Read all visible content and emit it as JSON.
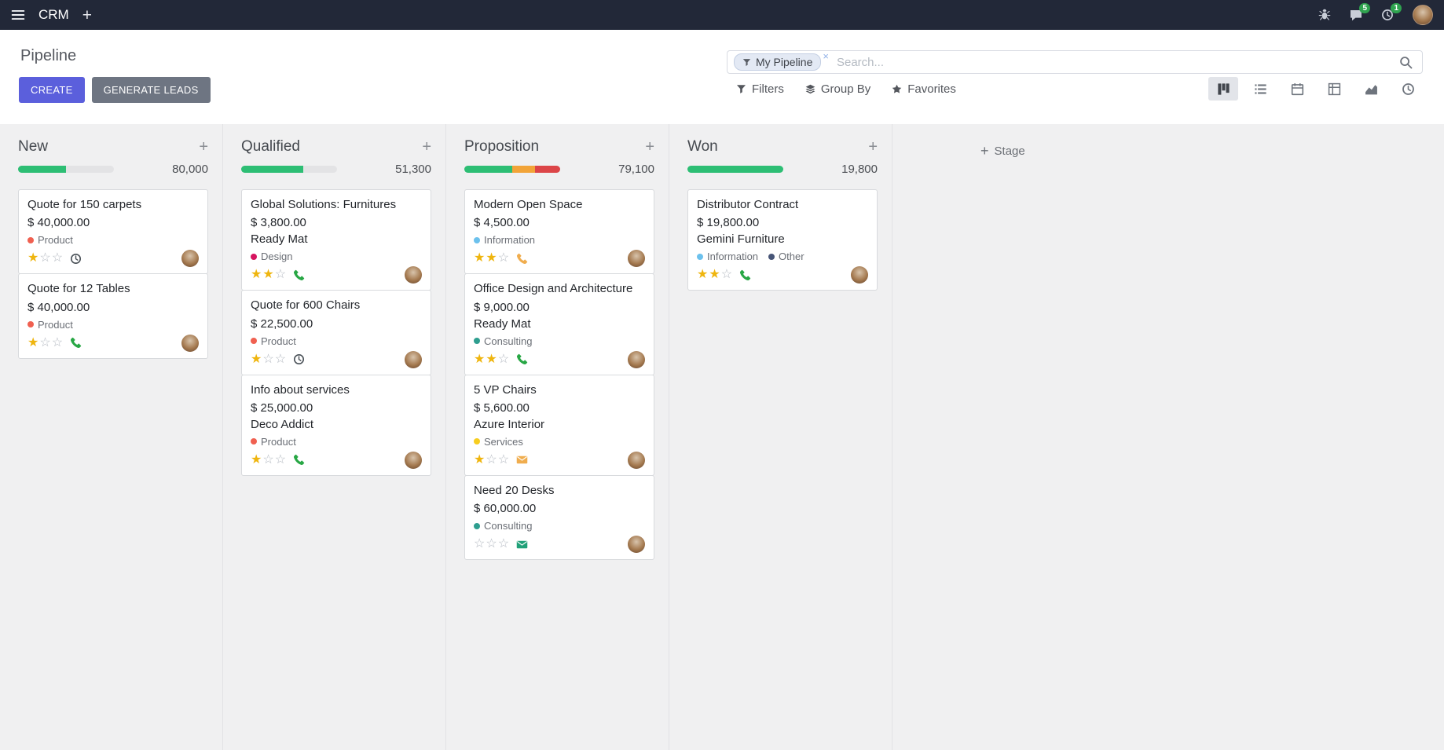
{
  "colors": {
    "navbar": "#222838",
    "primary": "#5B5FDC",
    "secondary": "#6E7582",
    "success": "#2DBE74",
    "warning": "#F2A438",
    "danger": "#DC4548",
    "star": "#EFB50E"
  },
  "topbar": {
    "app_name": "CRM",
    "messages_badge": "5",
    "activities_badge": "1"
  },
  "control_panel": {
    "title": "Pipeline",
    "create_label": "CREATE",
    "generate_leads_label": "GENERATE LEADS",
    "search": {
      "facet_label": "My Pipeline",
      "facet_icon": "funnel",
      "remove_facet_icon": "×",
      "placeholder": "Search...",
      "menus": [
        {
          "id": "filters",
          "label": "Filters",
          "icon": "funnel"
        },
        {
          "id": "group-by",
          "label": "Group By",
          "icon": "layers"
        },
        {
          "id": "favorites",
          "label": "Favorites",
          "icon": "star"
        }
      ]
    },
    "view_switcher": [
      {
        "id": "kanban",
        "icon": "kanban",
        "active": true
      },
      {
        "id": "list",
        "icon": "list",
        "active": false
      },
      {
        "id": "calendar",
        "icon": "calendar",
        "active": false
      },
      {
        "id": "pivot",
        "icon": "pivot",
        "active": false
      },
      {
        "id": "graph",
        "icon": "graph",
        "active": false
      },
      {
        "id": "activity",
        "icon": "clock",
        "active": false
      }
    ]
  },
  "kanban": {
    "add_stage_label": "Stage",
    "columns": [
      {
        "name": "New",
        "total": "80,000",
        "progress": [
          {
            "color": "#2DBE74",
            "pct": 50
          }
        ],
        "cards": [
          {
            "title": "Quote for 150 carpets",
            "amount": "$ 40,000.00",
            "partner": null,
            "tags": [
              {
                "label": "Product",
                "color": "#F06050"
              }
            ],
            "stars": 1,
            "activity": {
              "icon": "clock",
              "color": "#495057"
            }
          },
          {
            "title": "Quote for 12 Tables",
            "amount": "$ 40,000.00",
            "partner": null,
            "tags": [
              {
                "label": "Product",
                "color": "#F06050"
              }
            ],
            "stars": 1,
            "activity": {
              "icon": "phone",
              "color": "#28a745"
            }
          }
        ]
      },
      {
        "name": "Qualified",
        "total": "51,300",
        "progress": [
          {
            "color": "#2DBE74",
            "pct": 65
          }
        ],
        "cards": [
          {
            "title": "Global Solutions: Furnitures",
            "amount": "$ 3,800.00",
            "partner": "Ready Mat",
            "tags": [
              {
                "label": "Design",
                "color": "#D6145F"
              }
            ],
            "stars": 2,
            "activity": {
              "icon": "phone",
              "color": "#28a745"
            }
          },
          {
            "title": "Quote for 600 Chairs",
            "amount": "$ 22,500.00",
            "partner": null,
            "tags": [
              {
                "label": "Product",
                "color": "#F06050"
              }
            ],
            "stars": 1,
            "activity": {
              "icon": "clock",
              "color": "#495057"
            }
          },
          {
            "title": "Info about services",
            "amount": "$ 25,000.00",
            "partner": "Deco Addict",
            "tags": [
              {
                "label": "Product",
                "color": "#F06050"
              }
            ],
            "stars": 1,
            "activity": {
              "icon": "phone",
              "color": "#28a745"
            }
          }
        ]
      },
      {
        "name": "Proposition",
        "total": "79,100",
        "progress": [
          {
            "color": "#2DBE74",
            "pct": 50
          },
          {
            "color": "#F2A438",
            "pct": 24
          },
          {
            "color": "#DC4548",
            "pct": 26
          }
        ],
        "cards": [
          {
            "title": "Modern Open Space",
            "amount": "$ 4,500.00",
            "partner": null,
            "tags": [
              {
                "label": "Information",
                "color": "#6CC1ED"
              }
            ],
            "stars": 2,
            "activity": {
              "icon": "phone",
              "color": "#F0AD4E"
            }
          },
          {
            "title": "Office Design and Architecture",
            "amount": "$ 9,000.00",
            "partner": "Ready Mat",
            "tags": [
              {
                "label": "Consulting",
                "color": "#2E9E8F"
              }
            ],
            "stars": 2,
            "activity": {
              "icon": "phone",
              "color": "#28a745"
            }
          },
          {
            "title": "5 VP Chairs",
            "amount": "$ 5,600.00",
            "partner": "Azure Interior",
            "tags": [
              {
                "label": "Services",
                "color": "#F7CD1F"
              }
            ],
            "stars": 1,
            "activity": {
              "icon": "envelope",
              "color": "#F0AD4E"
            }
          },
          {
            "title": "Need 20 Desks",
            "amount": "$ 60,000.00",
            "partner": null,
            "tags": [
              {
                "label": "Consulting",
                "color": "#2E9E8F"
              }
            ],
            "stars": 0,
            "activity": {
              "icon": "envelope",
              "color": "#21A179"
            }
          }
        ]
      },
      {
        "name": "Won",
        "total": "19,800",
        "progress": [
          {
            "color": "#2DBE74",
            "pct": 100
          }
        ],
        "cards": [
          {
            "title": "Distributor Contract",
            "amount": "$ 19,800.00",
            "partner": "Gemini Furniture",
            "tags": [
              {
                "label": "Information",
                "color": "#6CC1ED"
              },
              {
                "label": "Other",
                "color": "#475577"
              }
            ],
            "stars": 2,
            "activity": {
              "icon": "phone",
              "color": "#28a745"
            }
          }
        ]
      }
    ]
  }
}
